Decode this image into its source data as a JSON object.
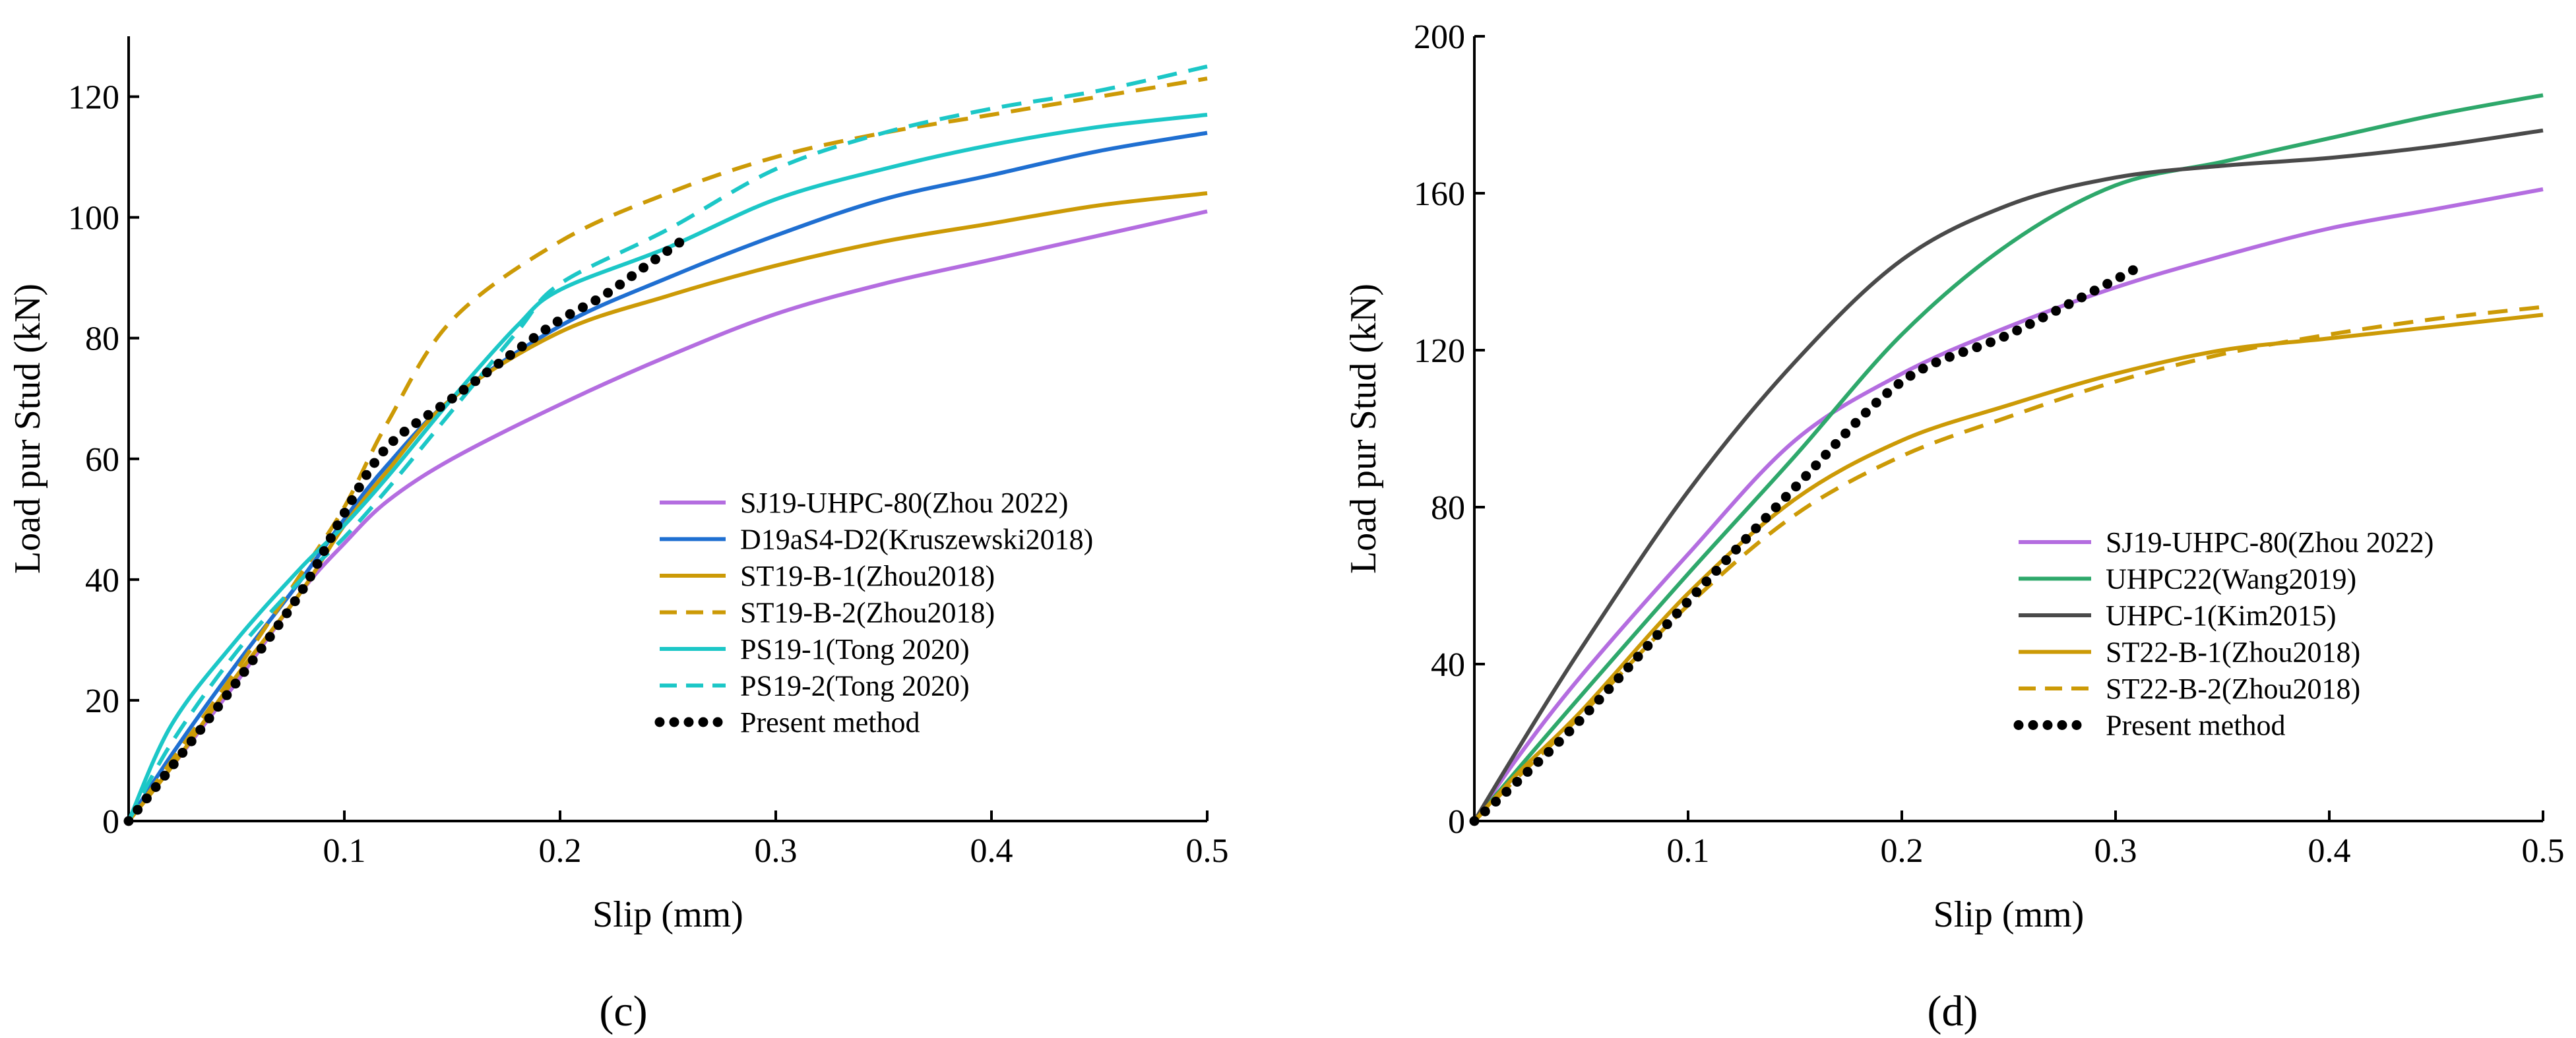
{
  "chart_data": [
    {
      "panel": "(c)",
      "type": "line",
      "xlabel": "Slip (mm)",
      "ylabel": "Load pur Stud (kN)",
      "xlim": [
        0,
        0.5
      ],
      "ylim": [
        0,
        130
      ],
      "xticks": [
        0.1,
        0.2,
        0.3,
        0.4,
        0.5
      ],
      "yticks": [
        0,
        20,
        40,
        60,
        80,
        100,
        120
      ],
      "legend_position": "bottom-right",
      "series": [
        {
          "name": "SJ19-UHPC-80(Zhou 2022)",
          "color": "#b46de0",
          "style": "solid",
          "x": [
            0,
            0.02,
            0.05,
            0.08,
            0.1,
            0.12,
            0.15,
            0.2,
            0.25,
            0.3,
            0.35,
            0.4,
            0.45,
            0.5
          ],
          "y": [
            0,
            9,
            23,
            38,
            46,
            53,
            60,
            69,
            77,
            84,
            89,
            93,
            97,
            101
          ]
        },
        {
          "name": "D19aS4-D2(Kruszewski2018)",
          "color": "#1f6fd1",
          "style": "solid",
          "x": [
            0,
            0.02,
            0.05,
            0.08,
            0.1,
            0.12,
            0.15,
            0.2,
            0.25,
            0.3,
            0.35,
            0.4,
            0.45,
            0.5
          ],
          "y": [
            0,
            11,
            26,
            40,
            50,
            59,
            70,
            82,
            90,
            97,
            103,
            107,
            111,
            114
          ]
        },
        {
          "name": "ST19-B-1(Zhou2018)",
          "color": "#cc9a06",
          "style": "solid",
          "x": [
            0,
            0.02,
            0.05,
            0.08,
            0.1,
            0.12,
            0.15,
            0.2,
            0.25,
            0.3,
            0.35,
            0.4,
            0.45,
            0.5
          ],
          "y": [
            0,
            9,
            24,
            38,
            49,
            58,
            70,
            81,
            87,
            92,
            96,
            99,
            102,
            104
          ]
        },
        {
          "name": "ST19-B-2(Zhou2018)",
          "color": "#cc9a06",
          "style": "dashed",
          "x": [
            0,
            0.02,
            0.05,
            0.08,
            0.1,
            0.12,
            0.15,
            0.2,
            0.25,
            0.3,
            0.35,
            0.4,
            0.45,
            0.5
          ],
          "y": [
            0,
            10,
            25,
            41,
            52,
            66,
            83,
            96,
            104,
            110,
            114,
            117,
            120,
            123
          ]
        },
        {
          "name": "PS19-1(Tong 2020)",
          "color": "#1cc7c7",
          "style": "solid",
          "x": [
            0,
            0.02,
            0.05,
            0.08,
            0.1,
            0.12,
            0.15,
            0.18,
            0.2,
            0.25,
            0.3,
            0.35,
            0.4,
            0.45,
            0.5
          ],
          "y": [
            0,
            16,
            30,
            42,
            49,
            57,
            70,
            82,
            88,
            95,
            103,
            108,
            112,
            115,
            117
          ]
        },
        {
          "name": "PS19-2(Tong 2020)",
          "color": "#1cc7c7",
          "style": "dashed",
          "x": [
            0,
            0.02,
            0.05,
            0.08,
            0.1,
            0.12,
            0.15,
            0.18,
            0.2,
            0.25,
            0.3,
            0.35,
            0.4,
            0.45,
            0.5
          ],
          "y": [
            0,
            13,
            28,
            40,
            47,
            55,
            68,
            81,
            89,
            98,
            108,
            114,
            118,
            121,
            125
          ]
        },
        {
          "name": "Present method",
          "color": "#000000",
          "style": "dotted",
          "x": [
            0,
            0.02,
            0.05,
            0.08,
            0.1,
            0.12,
            0.15,
            0.18,
            0.2,
            0.22,
            0.24,
            0.26
          ],
          "y": [
            0,
            9,
            23,
            38,
            51,
            62,
            70,
            78,
            83,
            87,
            92,
            97
          ]
        }
      ]
    },
    {
      "panel": "(d)",
      "type": "line",
      "xlabel": "Slip (mm)",
      "ylabel": "Load pur Stud (kN)",
      "xlim": [
        0,
        0.5
      ],
      "ylim": [
        0,
        200
      ],
      "xticks": [
        0.1,
        0.2,
        0.3,
        0.4,
        0.5
      ],
      "yticks": [
        0,
        40,
        80,
        120,
        160,
        200
      ],
      "legend_position": "bottom-right",
      "series": [
        {
          "name": "SJ19-UHPC-80(Zhou 2022)",
          "color": "#b46de0",
          "style": "solid",
          "x": [
            0,
            0.02,
            0.05,
            0.1,
            0.15,
            0.2,
            0.25,
            0.3,
            0.35,
            0.4,
            0.45,
            0.5
          ],
          "y": [
            0,
            16,
            37,
            68,
            97,
            114,
            126,
            136,
            144,
            151,
            156,
            161
          ]
        },
        {
          "name": "UHPC22(Wang2019)",
          "color": "#2ea86b",
          "style": "solid",
          "x": [
            0,
            0.02,
            0.05,
            0.1,
            0.15,
            0.2,
            0.25,
            0.3,
            0.35,
            0.4,
            0.45,
            0.5
          ],
          "y": [
            0,
            13,
            32,
            63,
            93,
            124,
            147,
            162,
            168,
            174,
            180,
            185
          ]
        },
        {
          "name": "UHPC-1(Kim2015)",
          "color": "#4a4a4a",
          "style": "solid",
          "x": [
            0,
            0.02,
            0.05,
            0.1,
            0.15,
            0.2,
            0.25,
            0.3,
            0.35,
            0.4,
            0.45,
            0.5
          ],
          "y": [
            0,
            18,
            44,
            84,
            117,
            143,
            157,
            164,
            167,
            169,
            172,
            176
          ]
        },
        {
          "name": "ST22-B-1(Zhou2018)",
          "color": "#cc9a06",
          "style": "solid",
          "x": [
            0,
            0.02,
            0.05,
            0.1,
            0.15,
            0.2,
            0.25,
            0.3,
            0.35,
            0.4,
            0.45,
            0.5
          ],
          "y": [
            0,
            12,
            28,
            58,
            82,
            97,
            106,
            114,
            120,
            123,
            126,
            129
          ]
        },
        {
          "name": "ST22-B-2(Zhou2018)",
          "color": "#cc9a06",
          "style": "dashed",
          "x": [
            0,
            0.02,
            0.05,
            0.1,
            0.15,
            0.2,
            0.25,
            0.3,
            0.35,
            0.4,
            0.45,
            0.5
          ],
          "y": [
            0,
            11,
            27,
            55,
            78,
            93,
            103,
            112,
            119,
            124,
            128,
            131
          ]
        },
        {
          "name": "Present method",
          "color": "#000000",
          "style": "dotted",
          "x": [
            0,
            0.02,
            0.05,
            0.1,
            0.15,
            0.2,
            0.25,
            0.3,
            0.31
          ],
          "y": [
            0,
            10,
            26,
            56,
            85,
            112,
            124,
            138,
            141
          ]
        }
      ]
    }
  ],
  "panel_labels": [
    "(c)",
    "(d)"
  ]
}
